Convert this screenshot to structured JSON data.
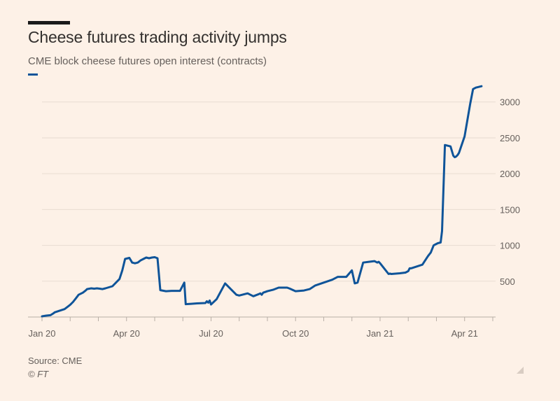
{
  "header": {
    "title": "Cheese futures trading activity jumps",
    "subtitle": "CME block cheese futures open interest (contracts)"
  },
  "footer": {
    "source": "Source: CME",
    "copyright": "© FT"
  },
  "colors": {
    "background": "#fdf1e7",
    "series": "#0f5499",
    "gridline": "#e8dcd2",
    "text": "#66605c"
  },
  "chart_data": {
    "type": "line",
    "title": "Cheese futures trading activity jumps",
    "subtitle": "CME block cheese futures open interest (contracts)",
    "xlabel": "",
    "ylabel": "",
    "ylim": [
      0,
      3300
    ],
    "xlim": [
      0,
      16.1
    ],
    "grid": true,
    "legend": "top-left",
    "x_tick_labels": [
      {
        "label": "Jan 20",
        "x": 0
      },
      {
        "label": "Apr 20",
        "x": 3
      },
      {
        "label": "Jul 20",
        "x": 6
      },
      {
        "label": "Oct 20",
        "x": 9
      },
      {
        "label": "Jan 21",
        "x": 12
      },
      {
        "label": "Apr 21",
        "x": 15
      }
    ],
    "y_ticks": [
      500,
      1000,
      1500,
      2000,
      2500,
      3000
    ],
    "y_tick_labels": [
      "500",
      "1000",
      "1500",
      "2000",
      "2500",
      "3000"
    ],
    "series": [
      {
        "name": "Open interest",
        "x": [
          0.0,
          0.15,
          0.3,
          0.4,
          0.45,
          0.6,
          0.8,
          0.9,
          1.0,
          1.1,
          1.2,
          1.3,
          1.45,
          1.55,
          1.6,
          1.75,
          1.85,
          1.95,
          2.05,
          2.15,
          2.25,
          2.5,
          2.75,
          2.85,
          2.95,
          3.1,
          3.2,
          3.3,
          3.4,
          3.5,
          3.6,
          3.7,
          3.8,
          3.9,
          4.0,
          4.1,
          4.2,
          4.4,
          4.6,
          4.9,
          5.05,
          5.1,
          5.3,
          5.5,
          5.8,
          5.85,
          5.9,
          5.95,
          6.0,
          6.2,
          6.5,
          6.9,
          7.0,
          7.2,
          7.3,
          7.5,
          7.7,
          7.75,
          7.8,
          7.85,
          8.0,
          8.2,
          8.4,
          8.7,
          8.8,
          9.0,
          9.3,
          9.5,
          9.7,
          10.0,
          10.3,
          10.5,
          10.8,
          11.0,
          11.1,
          11.2,
          11.4,
          11.6,
          11.8,
          11.9,
          11.95,
          12.0,
          12.3,
          12.35,
          12.4,
          12.7,
          12.9,
          13.0,
          13.05,
          13.1,
          13.5,
          13.7,
          13.8,
          13.9,
          14.0,
          14.05,
          14.1,
          14.15,
          14.2,
          14.3,
          14.5,
          14.6,
          14.65,
          14.7,
          14.75,
          14.8,
          15.0,
          15.2,
          15.3,
          15.4,
          15.5,
          15.6
        ],
        "values": [
          10,
          20,
          25,
          50,
          65,
          85,
          110,
          140,
          170,
          210,
          260,
          310,
          340,
          370,
          390,
          400,
          395,
          400,
          395,
          390,
          400,
          430,
          530,
          650,
          810,
          825,
          760,
          750,
          760,
          790,
          810,
          830,
          820,
          830,
          835,
          820,
          375,
          360,
          365,
          365,
          480,
          180,
          185,
          190,
          195,
          220,
          200,
          230,
          175,
          250,
          470,
          310,
          300,
          320,
          330,
          290,
          320,
          330,
          310,
          340,
          360,
          380,
          410,
          410,
          395,
          360,
          370,
          390,
          440,
          480,
          520,
          560,
          560,
          650,
          470,
          480,
          760,
          770,
          780,
          760,
          770,
          750,
          600,
          605,
          600,
          610,
          620,
          640,
          680,
          680,
          730,
          850,
          900,
          1000,
          1020,
          1030,
          1035,
          1040,
          1200,
          2400,
          2380,
          2250,
          2230,
          2240,
          2260,
          2290,
          2520,
          2980,
          3180,
          3200,
          3210,
          3220
        ]
      }
    ]
  }
}
